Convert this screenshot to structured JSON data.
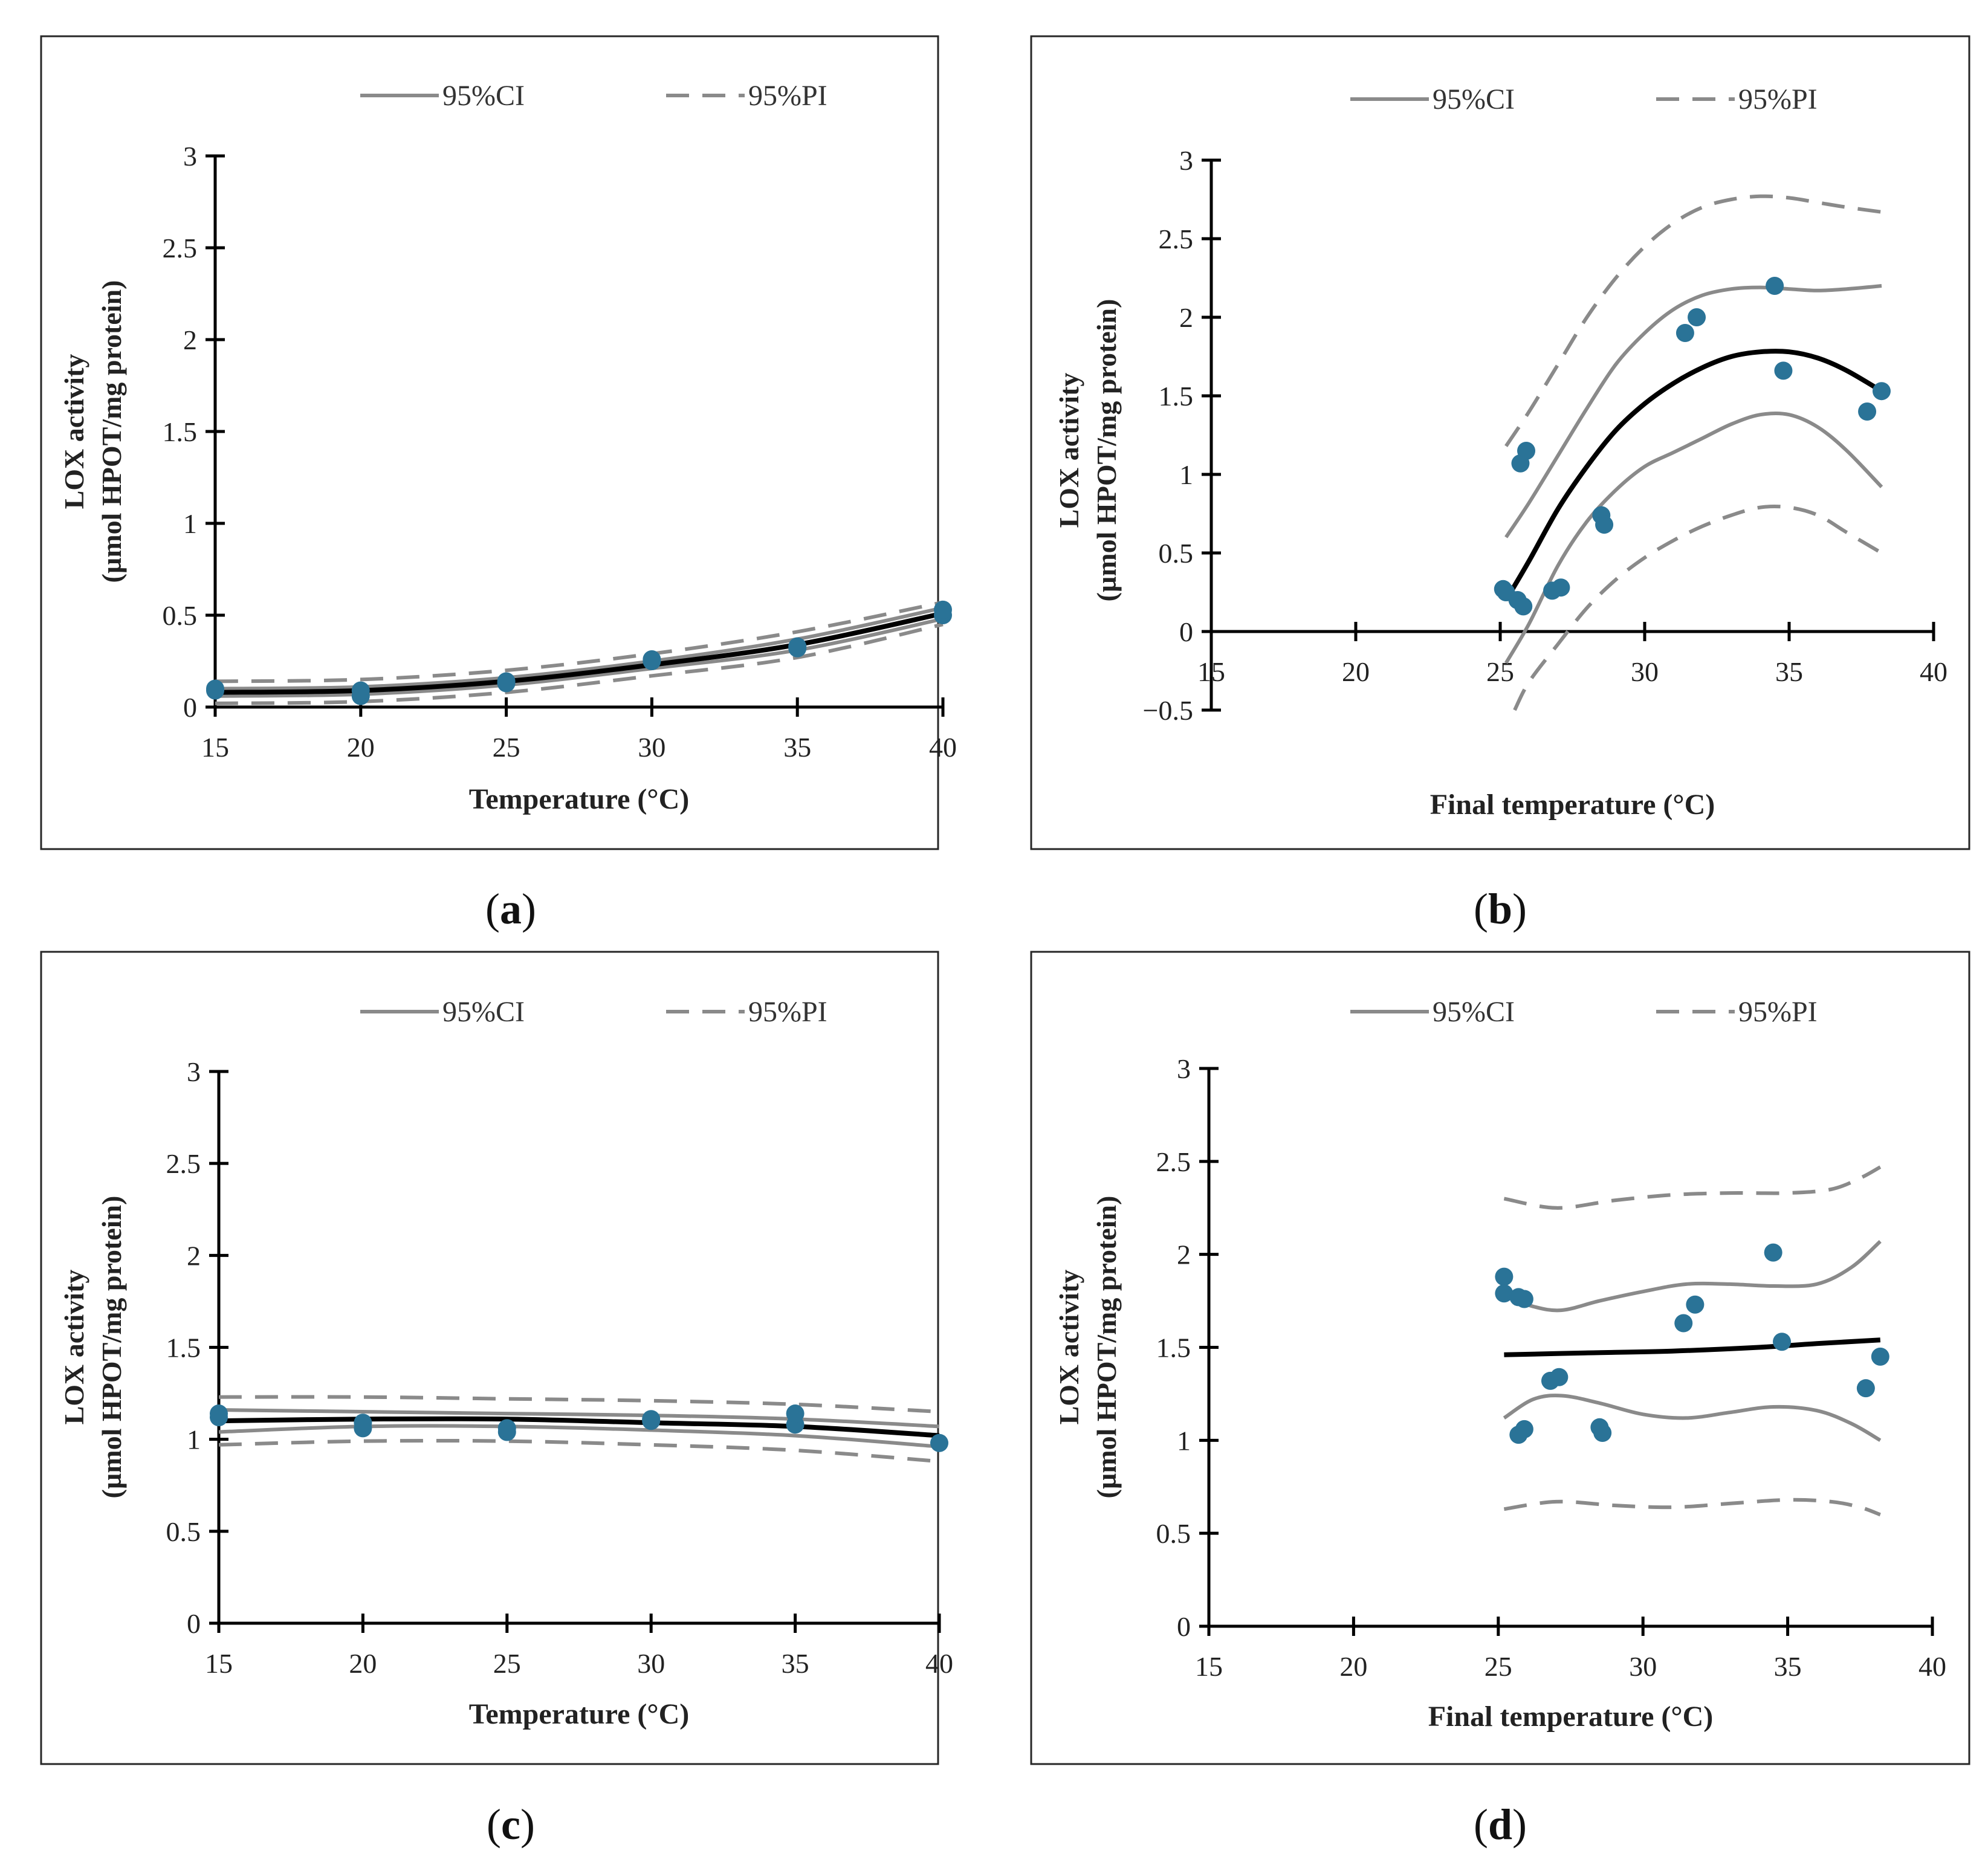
{
  "legend": {
    "ci_label": "95%CI",
    "pi_label": "95%PI"
  },
  "colors": {
    "points": "#2a7397",
    "fit": "#000000",
    "bands": "#8a8a8a"
  },
  "chart_data": [
    {
      "id": "a",
      "type": "scatter",
      "caption_letter": "a",
      "xlabel": "Temperature (°C)",
      "ylabel_line1": "LOX activity",
      "ylabel_line2": "(µmol HPOT/mg protein)",
      "xlim": [
        15,
        40
      ],
      "ylim": [
        0,
        3
      ],
      "xticks": [
        "15",
        "20",
        "25",
        "30",
        "35",
        "40"
      ],
      "yticks": [
        "0",
        "0.5",
        "1",
        "1.5",
        "2",
        "2.5",
        "3"
      ],
      "points": [
        [
          15,
          0.09
        ],
        [
          15,
          0.1
        ],
        [
          20,
          0.06
        ],
        [
          20,
          0.09
        ],
        [
          25,
          0.13
        ],
        [
          25,
          0.14
        ],
        [
          30,
          0.25
        ],
        [
          30,
          0.26
        ],
        [
          35,
          0.32
        ],
        [
          35,
          0.33
        ],
        [
          40,
          0.5
        ],
        [
          40,
          0.53
        ]
      ],
      "fit": [
        [
          15,
          0.08
        ],
        [
          20,
          0.09
        ],
        [
          25,
          0.14
        ],
        [
          30,
          0.23
        ],
        [
          35,
          0.34
        ],
        [
          40,
          0.51
        ]
      ],
      "ci_upper": [
        [
          15,
          0.1
        ],
        [
          20,
          0.11
        ],
        [
          25,
          0.16
        ],
        [
          30,
          0.25
        ],
        [
          35,
          0.37
        ],
        [
          40,
          0.54
        ]
      ],
      "ci_lower": [
        [
          15,
          0.06
        ],
        [
          20,
          0.07
        ],
        [
          25,
          0.12
        ],
        [
          30,
          0.21
        ],
        [
          35,
          0.31
        ],
        [
          40,
          0.48
        ]
      ],
      "pi_upper": [
        [
          15,
          0.14
        ],
        [
          20,
          0.15
        ],
        [
          25,
          0.2
        ],
        [
          30,
          0.29
        ],
        [
          35,
          0.41
        ],
        [
          40,
          0.57
        ]
      ],
      "pi_lower": [
        [
          15,
          0.02
        ],
        [
          20,
          0.03
        ],
        [
          25,
          0.08
        ],
        [
          30,
          0.17
        ],
        [
          35,
          0.27
        ],
        [
          40,
          0.45
        ]
      ]
    },
    {
      "id": "b",
      "type": "scatter",
      "caption_letter": "b",
      "xlabel": "Final temperature (°C)",
      "ylabel_line1": "LOX activity",
      "ylabel_line2": "(µmol HPOT/mg protein)",
      "xlim": [
        15,
        40
      ],
      "ylim": [
        -0.5,
        3
      ],
      "xticks": [
        "15",
        "20",
        "25",
        "30",
        "35",
        "40"
      ],
      "yticks": [
        "−0.5",
        "0",
        "0.5",
        "1",
        "1.5",
        "2",
        "2.5",
        "3"
      ],
      "points": [
        [
          25.1,
          0.27
        ],
        [
          25.2,
          0.25
        ],
        [
          25.6,
          0.2
        ],
        [
          25.8,
          0.16
        ],
        [
          25.7,
          1.07
        ],
        [
          25.9,
          1.15
        ],
        [
          26.8,
          0.26
        ],
        [
          27.1,
          0.28
        ],
        [
          28.5,
          0.74
        ],
        [
          28.6,
          0.68
        ],
        [
          31.4,
          1.9
        ],
        [
          31.8,
          2.0
        ],
        [
          34.5,
          2.2
        ],
        [
          34.8,
          1.66
        ],
        [
          37.7,
          1.4
        ],
        [
          38.2,
          1.53
        ]
      ],
      "fit": [
        [
          25.2,
          0.2
        ],
        [
          26,
          0.45
        ],
        [
          27,
          0.78
        ],
        [
          28,
          1.05
        ],
        [
          29,
          1.28
        ],
        [
          30,
          1.45
        ],
        [
          31,
          1.58
        ],
        [
          32,
          1.68
        ],
        [
          33,
          1.75
        ],
        [
          34,
          1.78
        ],
        [
          35,
          1.78
        ],
        [
          36,
          1.74
        ],
        [
          37,
          1.66
        ],
        [
          38.2,
          1.53
        ]
      ],
      "ci_upper": [
        [
          25.2,
          0.6
        ],
        [
          26,
          0.82
        ],
        [
          27,
          1.12
        ],
        [
          28,
          1.42
        ],
        [
          29,
          1.7
        ],
        [
          30,
          1.9
        ],
        [
          31,
          2.05
        ],
        [
          32,
          2.14
        ],
        [
          33,
          2.18
        ],
        [
          34,
          2.19
        ],
        [
          35,
          2.18
        ],
        [
          36,
          2.17
        ],
        [
          37,
          2.18
        ],
        [
          38.2,
          2.2
        ]
      ],
      "ci_lower": [
        [
          25.2,
          -0.2
        ],
        [
          26,
          0.05
        ],
        [
          27,
          0.42
        ],
        [
          28,
          0.7
        ],
        [
          29,
          0.9
        ],
        [
          30,
          1.05
        ],
        [
          31,
          1.14
        ],
        [
          32,
          1.23
        ],
        [
          33,
          1.32
        ],
        [
          34,
          1.38
        ],
        [
          35,
          1.38
        ],
        [
          36,
          1.3
        ],
        [
          37,
          1.15
        ],
        [
          38.2,
          0.92
        ]
      ],
      "pi_upper": [
        [
          25.2,
          1.18
        ],
        [
          26,
          1.4
        ],
        [
          27,
          1.7
        ],
        [
          28,
          2.0
        ],
        [
          29,
          2.25
        ],
        [
          30,
          2.45
        ],
        [
          31,
          2.6
        ],
        [
          32,
          2.7
        ],
        [
          33,
          2.75
        ],
        [
          34,
          2.77
        ],
        [
          35,
          2.76
        ],
        [
          36,
          2.73
        ],
        [
          37,
          2.7
        ],
        [
          38.2,
          2.67
        ]
      ],
      "pi_lower": [
        [
          25.5,
          -0.5
        ],
        [
          26,
          -0.32
        ],
        [
          27,
          -0.08
        ],
        [
          28,
          0.15
        ],
        [
          29,
          0.33
        ],
        [
          30,
          0.47
        ],
        [
          31,
          0.58
        ],
        [
          32,
          0.67
        ],
        [
          33,
          0.74
        ],
        [
          34,
          0.79
        ],
        [
          35,
          0.79
        ],
        [
          36,
          0.74
        ],
        [
          37,
          0.63
        ],
        [
          38.2,
          0.5
        ]
      ]
    },
    {
      "id": "c",
      "type": "scatter",
      "caption_letter": "c",
      "xlabel": "Temperature (°C)",
      "ylabel_line1": "LOX activity",
      "ylabel_line2": "(µmol HPOT/mg protein)",
      "xlim": [
        15,
        40
      ],
      "ylim": [
        0,
        3
      ],
      "xticks": [
        "15",
        "20",
        "25",
        "30",
        "35",
        "40"
      ],
      "yticks": [
        "0",
        "0.5",
        "1",
        "1.5",
        "2",
        "2.5",
        "3"
      ],
      "points": [
        [
          15,
          1.12
        ],
        [
          15,
          1.14
        ],
        [
          20,
          1.06
        ],
        [
          20,
          1.09
        ],
        [
          25,
          1.04
        ],
        [
          25,
          1.06
        ],
        [
          30,
          1.1
        ],
        [
          30,
          1.11
        ],
        [
          35,
          1.08
        ],
        [
          35,
          1.14
        ],
        [
          40,
          0.98
        ]
      ],
      "fit": [
        [
          15,
          1.1
        ],
        [
          20,
          1.11
        ],
        [
          25,
          1.11
        ],
        [
          30,
          1.09
        ],
        [
          35,
          1.07
        ],
        [
          40,
          1.02
        ]
      ],
      "ci_upper": [
        [
          15,
          1.16
        ],
        [
          20,
          1.15
        ],
        [
          25,
          1.14
        ],
        [
          30,
          1.13
        ],
        [
          35,
          1.11
        ],
        [
          40,
          1.07
        ]
      ],
      "ci_lower": [
        [
          15,
          1.04
        ],
        [
          20,
          1.07
        ],
        [
          25,
          1.07
        ],
        [
          30,
          1.05
        ],
        [
          35,
          1.02
        ],
        [
          40,
          0.96
        ]
      ],
      "pi_upper": [
        [
          15,
          1.23
        ],
        [
          20,
          1.23
        ],
        [
          25,
          1.22
        ],
        [
          30,
          1.21
        ],
        [
          35,
          1.19
        ],
        [
          40,
          1.15
        ]
      ],
      "pi_lower": [
        [
          15,
          0.97
        ],
        [
          20,
          0.99
        ],
        [
          25,
          0.99
        ],
        [
          30,
          0.97
        ],
        [
          35,
          0.94
        ],
        [
          40,
          0.88
        ]
      ]
    },
    {
      "id": "d",
      "type": "scatter",
      "caption_letter": "d",
      "xlabel": "Final temperature (°C)",
      "ylabel_line1": "LOX activity",
      "ylabel_line2": "(µmol HPOT/mg protein)",
      "xlim": [
        15,
        40
      ],
      "ylim": [
        0,
        3
      ],
      "xticks": [
        "15",
        "20",
        "25",
        "30",
        "35",
        "40"
      ],
      "yticks": [
        "0",
        "0.5",
        "1",
        "1.5",
        "2",
        "2.5",
        "3"
      ],
      "points": [
        [
          25.2,
          1.88
        ],
        [
          25.2,
          1.79
        ],
        [
          25.7,
          1.77
        ],
        [
          25.9,
          1.76
        ],
        [
          25.7,
          1.03
        ],
        [
          25.9,
          1.06
        ],
        [
          26.8,
          1.32
        ],
        [
          27.1,
          1.34
        ],
        [
          28.5,
          1.07
        ],
        [
          28.6,
          1.04
        ],
        [
          31.4,
          1.63
        ],
        [
          31.8,
          1.73
        ],
        [
          34.5,
          2.01
        ],
        [
          34.8,
          1.53
        ],
        [
          37.7,
          1.28
        ],
        [
          38.2,
          1.45
        ]
      ],
      "fit": [
        [
          25.2,
          1.46
        ],
        [
          28,
          1.47
        ],
        [
          31,
          1.48
        ],
        [
          34,
          1.5
        ],
        [
          36,
          1.52
        ],
        [
          38.2,
          1.54
        ]
      ],
      "ci_upper": [
        [
          25.2,
          1.78
        ],
        [
          26.2,
          1.72
        ],
        [
          27.2,
          1.7
        ],
        [
          28.5,
          1.75
        ],
        [
          30,
          1.8
        ],
        [
          31.5,
          1.84
        ],
        [
          33,
          1.84
        ],
        [
          34.5,
          1.83
        ],
        [
          36,
          1.84
        ],
        [
          37.2,
          1.93
        ],
        [
          38.2,
          2.07
        ]
      ],
      "ci_lower": [
        [
          25.2,
          1.12
        ],
        [
          26.2,
          1.22
        ],
        [
          27.2,
          1.24
        ],
        [
          28.5,
          1.2
        ],
        [
          30,
          1.14
        ],
        [
          31.5,
          1.12
        ],
        [
          33,
          1.15
        ],
        [
          34.5,
          1.18
        ],
        [
          36,
          1.16
        ],
        [
          37.2,
          1.09
        ],
        [
          38.2,
          1.0
        ]
      ],
      "pi_upper": [
        [
          25.2,
          2.3
        ],
        [
          27,
          2.25
        ],
        [
          29,
          2.29
        ],
        [
          31,
          2.32
        ],
        [
          33,
          2.33
        ],
        [
          35,
          2.33
        ],
        [
          36.5,
          2.35
        ],
        [
          37.5,
          2.41
        ],
        [
          38.2,
          2.47
        ]
      ],
      "pi_lower": [
        [
          25.2,
          0.63
        ],
        [
          27,
          0.67
        ],
        [
          29,
          0.65
        ],
        [
          31,
          0.64
        ],
        [
          33,
          0.66
        ],
        [
          35,
          0.68
        ],
        [
          36.5,
          0.67
        ],
        [
          37.5,
          0.64
        ],
        [
          38.2,
          0.6
        ]
      ]
    }
  ]
}
